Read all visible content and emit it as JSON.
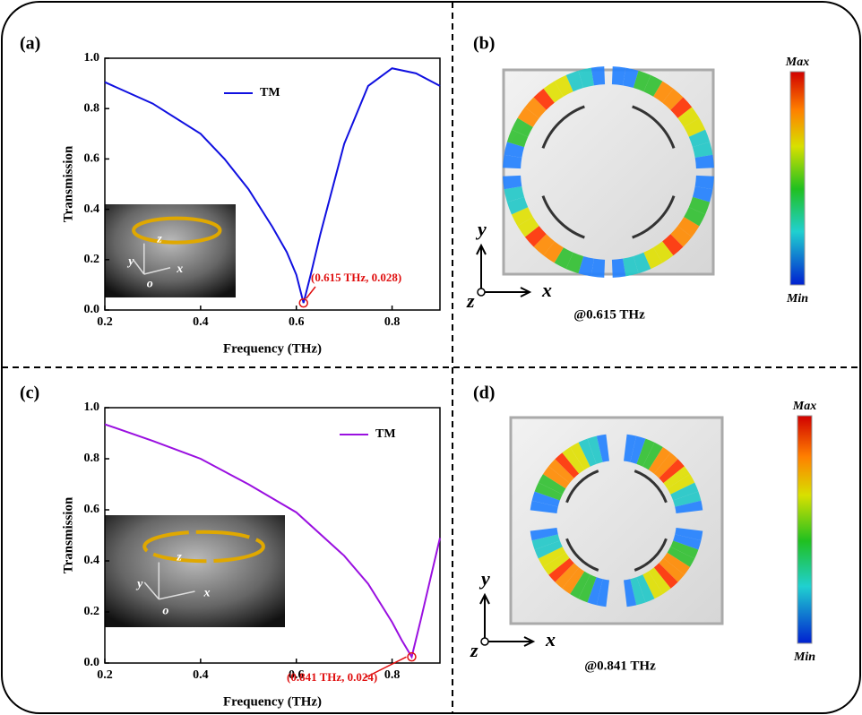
{
  "chart_data": [
    {
      "type": "line",
      "panel": "(a)",
      "x_label": "Frequency (THz)",
      "y_label": "Transmission",
      "x": [
        0.2,
        0.3,
        0.4,
        0.45,
        0.5,
        0.55,
        0.58,
        0.6,
        0.615,
        0.63,
        0.65,
        0.7,
        0.75,
        0.8,
        0.85,
        0.9
      ],
      "series": [
        {
          "name": "TM",
          "color": "#1010e0",
          "values": [
            0.905,
            0.82,
            0.7,
            0.6,
            0.48,
            0.33,
            0.23,
            0.14,
            0.028,
            0.14,
            0.3,
            0.66,
            0.89,
            0.96,
            0.94,
            0.89
          ]
        }
      ],
      "xlim": [
        0.2,
        0.9
      ],
      "ylim": [
        0,
        1
      ],
      "xticks": [
        0.2,
        0.4,
        0.6,
        0.8
      ],
      "yticks": [
        {
          "value": 0,
          "label": "0.0"
        },
        0.2,
        0.4,
        0.6,
        0.8,
        {
          "value": 1,
          "label": "1.0"
        }
      ],
      "annotation": {
        "text": "(0.615 THz, 0.028)",
        "x": 0.615,
        "y": 0.028,
        "color": "#e01010"
      },
      "inset_labels": [
        "z",
        "y",
        "x",
        "o"
      ]
    },
    {
      "type": "line",
      "panel": "(c)",
      "x_label": "Frequency (THz)",
      "y_label": "Transmission",
      "x": [
        0.2,
        0.3,
        0.4,
        0.5,
        0.6,
        0.7,
        0.75,
        0.8,
        0.82,
        0.841,
        0.86,
        0.88,
        0.9
      ],
      "series": [
        {
          "name": "TM",
          "color": "#9a10e0",
          "values": [
            0.935,
            0.87,
            0.8,
            0.7,
            0.59,
            0.42,
            0.31,
            0.16,
            0.09,
            0.024,
            0.17,
            0.33,
            0.49
          ]
        }
      ],
      "xlim": [
        0.2,
        0.9
      ],
      "ylim": [
        0,
        1
      ],
      "xticks": [
        0.2,
        0.4,
        0.6,
        0.8
      ],
      "yticks": [
        {
          "value": 0,
          "label": "0.0"
        },
        0.2,
        0.4,
        0.6,
        0.8,
        {
          "value": 1,
          "label": "1.0"
        }
      ],
      "annotation": {
        "text": "(0.841 THz, 0.024)",
        "x": 0.841,
        "y": 0.024,
        "color": "#e01010"
      },
      "inset_labels": [
        "z",
        "y",
        "x",
        "o"
      ]
    }
  ],
  "field_panels": [
    {
      "panel": "(b)",
      "caption": "@0.615 THz",
      "max": "Max",
      "min": "Min",
      "axes": [
        "y",
        "z",
        "x"
      ]
    },
    {
      "panel": "(d)",
      "caption": "@0.841 THz",
      "max": "Max",
      "min": "Min",
      "axes": [
        "y",
        "z",
        "x"
      ]
    }
  ]
}
